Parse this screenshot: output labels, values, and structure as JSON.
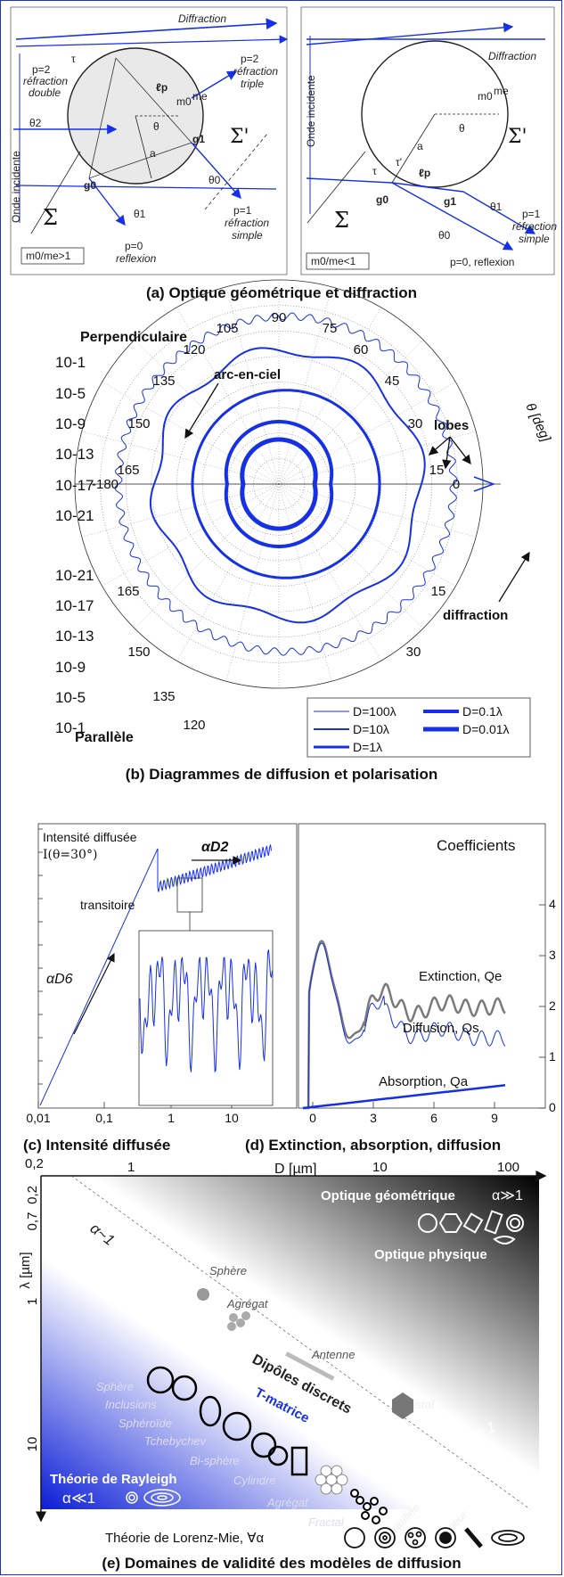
{
  "panel_a": {
    "caption": "(a) Optique géométrique et diffraction",
    "left": {
      "diffraction": "Diffraction",
      "p2_line1": "p=2",
      "p2_line2": "réfraction",
      "p2_line3": "double",
      "p2r_line1": "p=2",
      "p2r_line2": "réfraction",
      "p2r_line3": "triple",
      "p1_line1": "p=1",
      "p1_line2": "réfraction",
      "p1_line3": "simple",
      "p0_line1": "p=0",
      "p0_line2": "reflexion",
      "onde": "Onde incidente",
      "sigma": "Σ",
      "sigmap": "Σ'",
      "ratio": "m0/me>1",
      "m0": "m0",
      "me": "me",
      "a": "a",
      "theta": "θ",
      "lp": "ℓp",
      "g0": "g0",
      "g1": "g1",
      "tau": "τ",
      "theta0": "θ0",
      "theta1": "θ1",
      "theta2": "θ2"
    },
    "right": {
      "diffraction": "Diffraction",
      "onde": "Onde incidente",
      "sigma": "Σ",
      "sigmap": "Σ'",
      "ratio": "m0/me<1",
      "p1_line1": "p=1",
      "p1_line2": "réfraction",
      "p1_line3": "simple",
      "p0": "p=0, reflexion",
      "m0": "m0",
      "me": "me",
      "a": "a",
      "theta": "θ",
      "lp": "ℓp",
      "g0": "g0",
      "g1": "g1",
      "tau": "τ",
      "taup": "τ'",
      "theta0": "θ0",
      "theta1": "θ1"
    }
  },
  "panel_b": {
    "caption": "(b) Diagrammes de diffusion et polarisation",
    "perp": "Perpendiculaire",
    "para": "Parallèle",
    "theta_label": "θ [deg]",
    "arc": "arc-en-ciel",
    "lobes": "lobes",
    "diffraction": "diffraction",
    "radial_ticks_top": [
      "10-1",
      "10-5",
      "10-9",
      "10-13",
      "10-17",
      "10-21"
    ],
    "radial_ticks_bottom": [
      "10-21",
      "10-17",
      "10-13",
      "10-9",
      "10-5",
      "10-1"
    ],
    "angle_ticks_top": [
      "90",
      "105",
      "75",
      "120",
      "60",
      "135",
      "45",
      "150",
      "30",
      "165",
      "15",
      "-180",
      "0"
    ],
    "angle_ticks_bottom": [
      "165",
      "15",
      "150",
      "30",
      "135",
      "120"
    ],
    "legend": [
      "D=100λ",
      "D=0.1λ",
      "D=10λ",
      "D=0.01λ",
      "D=1λ"
    ]
  },
  "panel_c": {
    "caption": "(c) Intensité diffusée",
    "title1": "Intensité diffusée",
    "title2": "I(θ=30°)",
    "transitoire": "transitoire",
    "d6": "αD6",
    "d2": "αD2",
    "x_ticks": [
      "0,01",
      "0,1",
      "1",
      "10"
    ]
  },
  "panel_d": {
    "caption": "(d) Extinction, absorption, diffusion",
    "title": "Coefficients",
    "extinction": "Extinction, Qe",
    "diffusion": "Diffusion, Qs",
    "absorption": "Absorption, Qa",
    "x_ticks": [
      "0",
      "3",
      "6",
      "9"
    ],
    "y_ticks": [
      "0",
      "1",
      "2",
      "3",
      "4"
    ]
  },
  "panel_e": {
    "caption": "(e) Domaines de validité des modèles de diffusion",
    "d_axis": "D [µm]",
    "lambda_axis": "λ [µm]",
    "d_ticks": [
      "0,2",
      "1",
      "10",
      "100"
    ],
    "l_ticks": [
      "0,2",
      "0,7",
      "1",
      "10"
    ],
    "optique_geo": "Optique géométrique",
    "alpha_gg": "α≫1",
    "optique_phys": "Optique physique",
    "alpha_1a": "α~1",
    "alpha_1b": "α~1",
    "sphere1": "Sphère",
    "agregat1": "Agrégat",
    "antenne": "Antenne",
    "dipoles": "Dipôles discrets",
    "tmatrice": "T-matrice",
    "cristal": "Cristal",
    "sphere2": "Sphère",
    "inclusions": "Inclusions",
    "spheroide": "Sphéroïde",
    "tchebychev": "Tchebychev",
    "bisphere": "Bi-sphère",
    "cylindre": "Cylindre",
    "agregat2": "Agrégat",
    "fractal": "Fractal",
    "stratifiee": "Stratifiée",
    "acoeur": "A coeur",
    "dots": "....",
    "rayleigh": "Théorie de Rayleigh",
    "alpha_ll": "α≪1",
    "lorenz": "Théorie de Lorenz-Mie,  ∀α"
  },
  "colors": {
    "accent": "#1630e6",
    "frame": "#1a33c8",
    "grey": "#777777"
  }
}
